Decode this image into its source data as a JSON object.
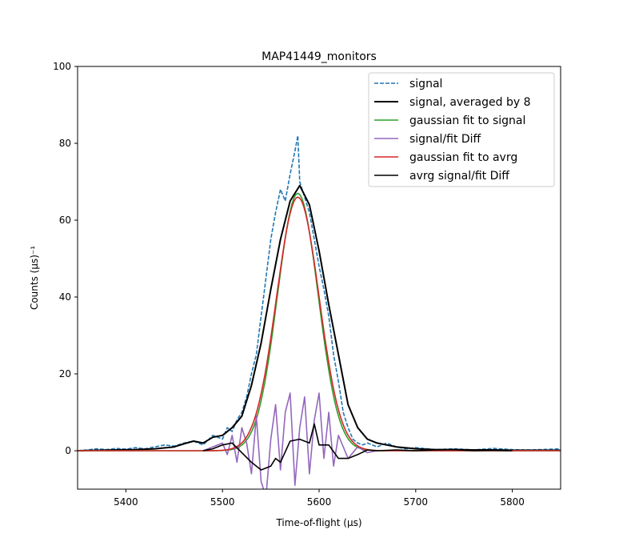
{
  "chart_data": {
    "type": "line",
    "title": "MAP41449_monitors",
    "xlabel": "Time-of-flight (μs)",
    "ylabel": "Counts (μs)⁻¹",
    "xlim": [
      5350,
      5850
    ],
    "ylim": [
      -10,
      100
    ],
    "xticks": [
      5400,
      5500,
      5600,
      5700,
      5800
    ],
    "yticks": [
      0,
      20,
      40,
      60,
      80,
      100
    ],
    "grid": false,
    "legend_position": "top-right",
    "series": [
      {
        "name": "signal",
        "color": "#1f77b4",
        "style": "dashed",
        "x": [
          5350,
          5360,
          5370,
          5380,
          5390,
          5400,
          5410,
          5420,
          5430,
          5440,
          5450,
          5460,
          5470,
          5480,
          5490,
          5500,
          5505,
          5510,
          5515,
          5520,
          5525,
          5530,
          5535,
          5540,
          5545,
          5550,
          5555,
          5560,
          5565,
          5570,
          5575,
          5578,
          5580,
          5585,
          5590,
          5595,
          5600,
          5605,
          5610,
          5615,
          5620,
          5625,
          5630,
          5635,
          5640,
          5645,
          5650,
          5660,
          5670,
          5680,
          5690,
          5700,
          5720,
          5740,
          5760,
          5780,
          5800,
          5820,
          5840,
          5850
        ],
        "y": [
          0,
          0.2,
          0.5,
          0.3,
          0.6,
          0.4,
          0.8,
          0.5,
          1,
          1.5,
          1.2,
          2,
          2.5,
          1.5,
          4,
          3,
          6,
          5,
          8,
          10,
          14,
          20,
          25,
          35,
          45,
          55,
          62,
          68,
          65,
          72,
          78,
          82,
          70,
          66,
          62,
          55,
          48,
          42,
          35,
          25,
          18,
          10,
          6,
          3,
          2,
          1.5,
          2,
          1,
          2,
          1,
          0.5,
          0.8,
          0.3,
          0.5,
          0.2,
          0.6,
          0.3,
          0.2,
          0.4,
          0.5
        ]
      },
      {
        "name": "signal, averaged by 8",
        "color": "#000000",
        "style": "solid",
        "x": [
          5350,
          5370,
          5390,
          5410,
          5430,
          5450,
          5460,
          5470,
          5480,
          5490,
          5500,
          5510,
          5520,
          5530,
          5540,
          5550,
          5560,
          5570,
          5575,
          5580,
          5590,
          5600,
          5610,
          5620,
          5630,
          5640,
          5650,
          5660,
          5670,
          5680,
          5700,
          5720,
          5740,
          5760,
          5780,
          5800,
          5820,
          5850
        ],
        "y": [
          0,
          0.1,
          0.2,
          0.3,
          0.5,
          1,
          1.8,
          2.5,
          2,
          3.5,
          4,
          6,
          9,
          17,
          28,
          42,
          55,
          65,
          67,
          69,
          64,
          52,
          38,
          25,
          12,
          6,
          3,
          2,
          1.5,
          1,
          0.5,
          0.3,
          0.3,
          0.2,
          0.2,
          0.1,
          0.1,
          0.1
        ]
      },
      {
        "name": "gaussian fit to signal",
        "color": "#2ca02c",
        "style": "solid",
        "gaussian": {
          "amplitude": 67,
          "center": 5578,
          "sigma": 21
        },
        "x_range": [
          5350,
          5850
        ]
      },
      {
        "name": "signal/fit Diff",
        "color": "#9467bd",
        "style": "solid",
        "x": [
          5480,
          5490,
          5500,
          5505,
          5510,
          5515,
          5520,
          5525,
          5530,
          5535,
          5540,
          5545,
          5550,
          5555,
          5560,
          5565,
          5570,
          5575,
          5580,
          5585,
          5590,
          5595,
          5600,
          5605,
          5610,
          5615,
          5620,
          5625,
          5630,
          5640,
          5650,
          5660
        ],
        "y": [
          0,
          1,
          2,
          -1,
          4,
          -3,
          6,
          2,
          -6,
          9,
          -8,
          -12,
          3,
          12,
          -5,
          10,
          15,
          -9,
          6,
          14,
          -6,
          8,
          15,
          -2,
          10,
          -4,
          4,
          1,
          -2,
          1,
          -0.5,
          0
        ]
      },
      {
        "name": "gaussian fit to avrg",
        "color": "#d62728",
        "style": "solid",
        "gaussian": {
          "amplitude": 66,
          "center": 5578,
          "sigma": 22
        },
        "x_range": [
          5350,
          5850
        ]
      },
      {
        "name": "avrg signal/fit Diff",
        "color": "#000000",
        "style": "solid",
        "x": [
          5480,
          5490,
          5500,
          5510,
          5520,
          5530,
          5540,
          5550,
          5555,
          5560,
          5570,
          5580,
          5590,
          5595,
          5600,
          5610,
          5620,
          5630,
          5640,
          5650,
          5660,
          5680,
          5700,
          5720,
          5740,
          5760,
          5780,
          5800
        ],
        "y": [
          0,
          0.5,
          1.5,
          2,
          -0.5,
          -3,
          -5,
          -4,
          -2,
          -3,
          2.5,
          3,
          2,
          7,
          1.5,
          1.5,
          -2,
          -2,
          -1,
          0.2,
          0,
          0.2,
          0,
          0.2,
          0.3,
          0,
          0.1,
          0
        ]
      }
    ]
  }
}
